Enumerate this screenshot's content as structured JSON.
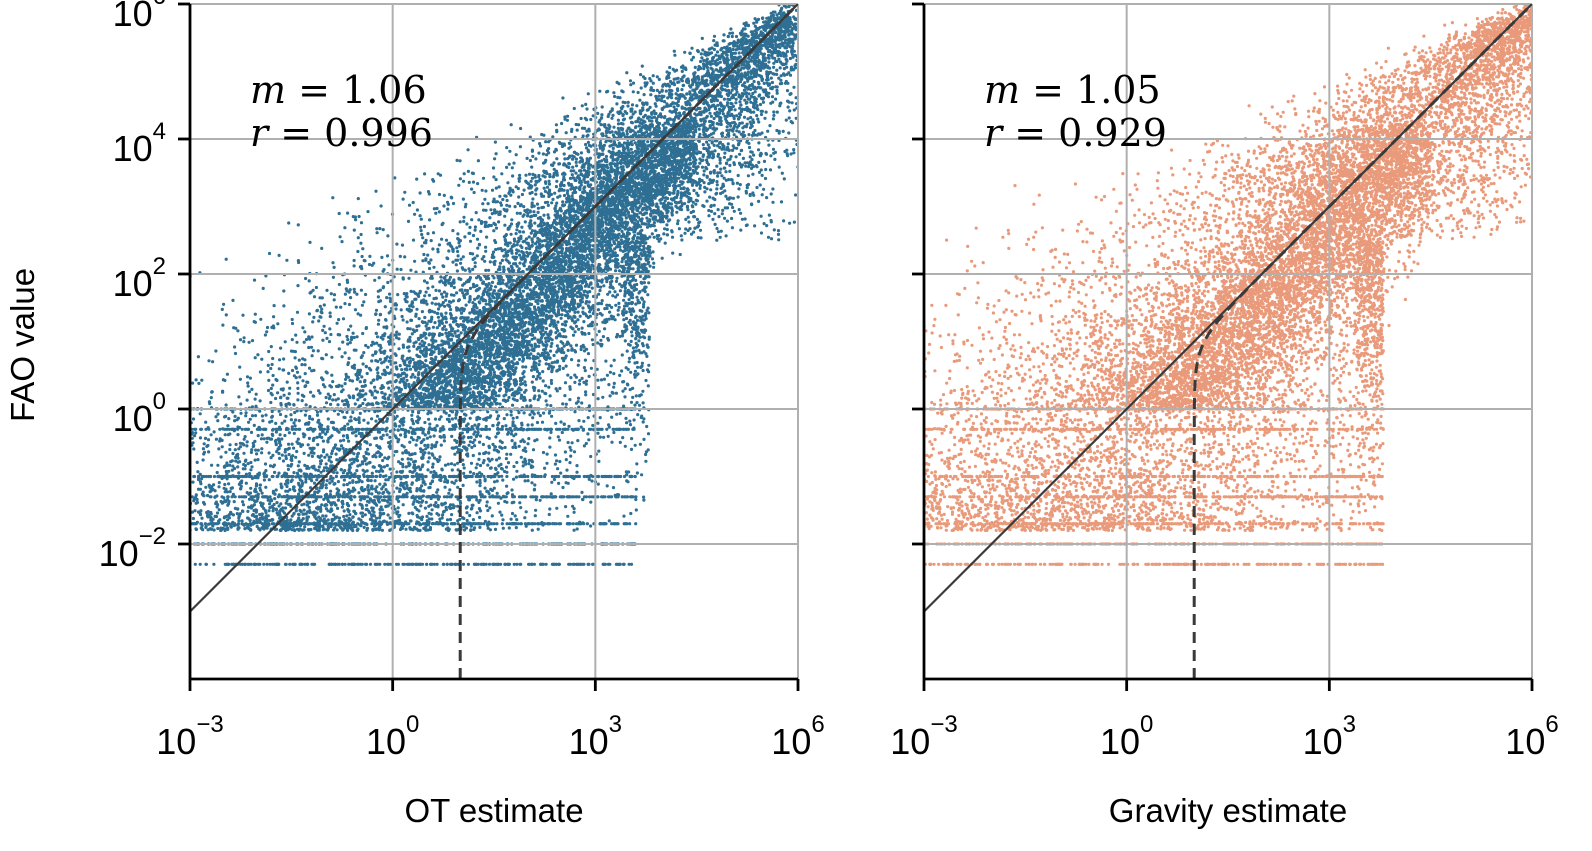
{
  "chart_data": [
    {
      "type": "scatter",
      "panel": "left",
      "xlabel": "OT estimate",
      "ylabel": "FAO value",
      "xscale": "log",
      "yscale": "log",
      "xlim": [
        0.001,
        1000000
      ],
      "ylim": [
        0.0001,
        1000000
      ],
      "xticks": [
        0.001,
        1,
        1000,
        1000000
      ],
      "xtick_labels": [
        {
          "base": "10",
          "exp": "−3"
        },
        {
          "base": "10",
          "exp": "0"
        },
        {
          "base": "10",
          "exp": "3"
        },
        {
          "base": "10",
          "exp": "6"
        }
      ],
      "yticks": [
        0.01,
        1,
        100,
        10000,
        1000000
      ],
      "ytick_labels": [
        {
          "base": "10",
          "exp": "−2"
        },
        {
          "base": "10",
          "exp": "0"
        },
        {
          "base": "10",
          "exp": "2"
        },
        {
          "base": "10",
          "exp": "4"
        },
        {
          "base": "10",
          "exp": "6"
        }
      ],
      "grid": true,
      "color": "#2e6f93",
      "annotation": {
        "m_var": "m",
        "m_value": "1.06",
        "r_var": "r",
        "r_value": "0.996"
      },
      "reference_lines": [
        {
          "name": "identity",
          "style": "solid",
          "color": "#3a3a3a"
        },
        {
          "name": "fit",
          "style": "dashed",
          "color": "#3a3a3a",
          "vertical_asymptote_x": 10
        }
      ],
      "point_cloud": {
        "description_range": {
          "x_min": 0.001,
          "x_max": 1000000,
          "y_min": 0.005,
          "y_max": 1000000
        },
        "correlation": 0.996,
        "horizontal_bands_y": [
          0.005,
          0.01,
          0.02,
          0.05,
          0.1,
          0.5,
          1
        ]
      }
    },
    {
      "type": "scatter",
      "panel": "right",
      "xlabel": "Gravity estimate",
      "ylabel": "",
      "xscale": "log",
      "yscale": "log",
      "xlim": [
        0.001,
        1000000
      ],
      "ylim": [
        0.0001,
        1000000
      ],
      "xticks": [
        0.001,
        1,
        1000,
        1000000
      ],
      "xtick_labels": [
        {
          "base": "10",
          "exp": "−3"
        },
        {
          "base": "10",
          "exp": "0"
        },
        {
          "base": "10",
          "exp": "3"
        },
        {
          "base": "10",
          "exp": "6"
        }
      ],
      "yticks": [
        0.01,
        1,
        100,
        10000,
        1000000
      ],
      "grid": true,
      "color": "#e99a7a",
      "annotation": {
        "m_var": "m",
        "m_value": "1.05",
        "r_var": "r",
        "r_value": "0.929"
      },
      "reference_lines": [
        {
          "name": "identity",
          "style": "solid",
          "color": "#3a3a3a"
        },
        {
          "name": "fit",
          "style": "dashed",
          "color": "#3a3a3a",
          "vertical_asymptote_x": 10
        }
      ],
      "point_cloud": {
        "description_range": {
          "x_min": 0.001,
          "x_max": 1000000,
          "y_min": 0.005,
          "y_max": 1000000
        },
        "correlation": 0.929,
        "horizontal_bands_y": [
          0.005,
          0.01,
          0.02,
          0.05,
          0.1,
          0.5,
          1
        ]
      }
    }
  ]
}
